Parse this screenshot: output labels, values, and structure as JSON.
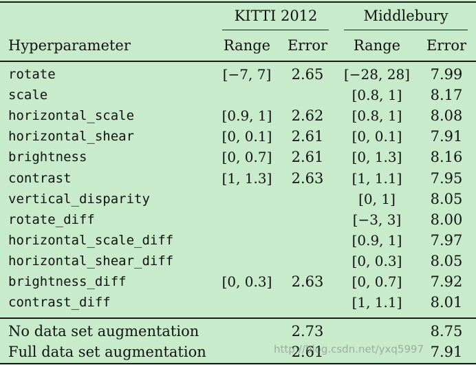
{
  "table": {
    "group_headers": {
      "kitti": "KITTI 2012",
      "middlebury": "Middlebury"
    },
    "column_headers": {
      "hyperparameter": "Hyperparameter",
      "kitti_range": "Range",
      "kitti_error": "Error",
      "mb_range": "Range",
      "mb_error": "Error"
    },
    "rows": [
      {
        "name": "rotate",
        "kitti_range": "[−7, 7]",
        "kitti_error": "2.65",
        "mb_range": "[−28, 28]",
        "mb_error": "7.99"
      },
      {
        "name": "scale",
        "kitti_range": "",
        "kitti_error": "",
        "mb_range": "[0.8, 1]",
        "mb_error": "8.17"
      },
      {
        "name": "horizontal_scale",
        "kitti_range": "[0.9, 1]",
        "kitti_error": "2.62",
        "mb_range": "[0.8, 1]",
        "mb_error": "8.08"
      },
      {
        "name": "horizontal_shear",
        "kitti_range": "[0, 0.1]",
        "kitti_error": "2.61",
        "mb_range": "[0, 0.1]",
        "mb_error": "7.91"
      },
      {
        "name": "brightness",
        "kitti_range": "[0, 0.7]",
        "kitti_error": "2.61",
        "mb_range": "[0, 1.3]",
        "mb_error": "8.16"
      },
      {
        "name": "contrast",
        "kitti_range": "[1, 1.3]",
        "kitti_error": "2.63",
        "mb_range": "[1, 1.1]",
        "mb_error": "7.95"
      },
      {
        "name": "vertical_disparity",
        "kitti_range": "",
        "kitti_error": "",
        "mb_range": "[0, 1]",
        "mb_error": "8.05"
      },
      {
        "name": "rotate_diff",
        "kitti_range": "",
        "kitti_error": "",
        "mb_range": "[−3, 3]",
        "mb_error": "8.00"
      },
      {
        "name": "horizontal_scale_diff",
        "kitti_range": "",
        "kitti_error": "",
        "mb_range": "[0.9, 1]",
        "mb_error": "7.97"
      },
      {
        "name": "horizontal_shear_diff",
        "kitti_range": "",
        "kitti_error": "",
        "mb_range": "[0, 0.3]",
        "mb_error": "8.05"
      },
      {
        "name": "brightness_diff",
        "kitti_range": "[0, 0.3]",
        "kitti_error": "2.63",
        "mb_range": "[0, 0.7]",
        "mb_error": "7.92"
      },
      {
        "name": "contrast_diff",
        "kitti_range": "",
        "kitti_error": "",
        "mb_range": "[1, 1.1]",
        "mb_error": "8.01"
      }
    ],
    "summary_rows": [
      {
        "name": "No data set augmentation",
        "kitti_error": "2.73",
        "mb_error": "8.75"
      },
      {
        "name": "Full data set augmentation",
        "kitti_error": "2.61",
        "mb_error": "7.91"
      }
    ]
  },
  "watermark": "http://blog.csdn.net/yxq5997"
}
